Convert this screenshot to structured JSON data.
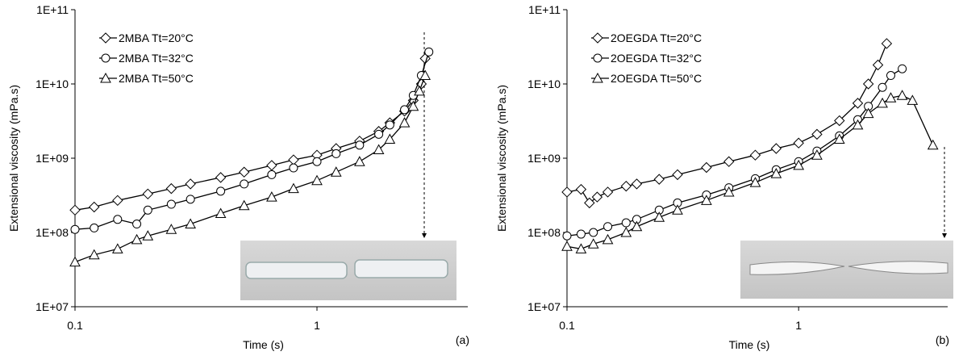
{
  "chart_data": [
    {
      "type": "line",
      "panel_label": "(a)",
      "xlabel": "Time (s)",
      "ylabel": "Extensional viscosity (mPa.s)",
      "log_x": true,
      "log_y": true,
      "legend": "upper left",
      "xlim": [
        0.1,
        4.2
      ],
      "xticks": [
        0.1,
        1
      ],
      "ylim": [
        10000000.0,
        100000000000.0
      ],
      "yticks": [
        {
          "value": 10000000.0,
          "label": "1E+07"
        },
        {
          "value": 100000000.0,
          "label": "1E+08"
        },
        {
          "value": 1000000000.0,
          "label": "1E+09"
        },
        {
          "value": 10000000000.0,
          "label": "1E+10"
        },
        {
          "value": 100000000000.0,
          "label": "1E+11"
        }
      ],
      "series": [
        {
          "name": "2MBA Tt=20°C",
          "marker": "diamond",
          "color": "#000000",
          "x": [
            0.1,
            0.12,
            0.15,
            0.2,
            0.25,
            0.3,
            0.4,
            0.5,
            0.65,
            0.8,
            1,
            1.2,
            1.5,
            1.8,
            2,
            2.3,
            2.5,
            2.7,
            2.8
          ],
          "values": [
            200000000.0,
            220000000.0,
            270000000.0,
            330000000.0,
            390000000.0,
            450000000.0,
            550000000.0,
            650000000.0,
            800000000.0,
            950000000.0,
            1100000000.0,
            1350000000.0,
            1700000000.0,
            2300000000.0,
            3000000000.0,
            4300000000.0,
            6000000000.0,
            10000000000.0,
            22000000000.0
          ]
        },
        {
          "name": "2MBA Tt=32°C",
          "marker": "circle",
          "color": "#000000",
          "x": [
            0.1,
            0.12,
            0.15,
            0.18,
            0.2,
            0.25,
            0.3,
            0.4,
            0.5,
            0.65,
            0.8,
            1,
            1.2,
            1.5,
            1.8,
            2,
            2.3,
            2.5,
            2.7,
            2.9
          ],
          "values": [
            110000000.0,
            115000000.0,
            150000000.0,
            130000000.0,
            200000000.0,
            240000000.0,
            280000000.0,
            360000000.0,
            450000000.0,
            600000000.0,
            740000000.0,
            900000000.0,
            1150000000.0,
            1500000000.0,
            2100000000.0,
            2800000000.0,
            4500000000.0,
            7000000000.0,
            13000000000.0,
            27000000000.0
          ]
        },
        {
          "name": "2MBA Tt=50°C",
          "marker": "triangle",
          "color": "#000000",
          "x": [
            0.1,
            0.12,
            0.15,
            0.18,
            0.2,
            0.25,
            0.3,
            0.4,
            0.5,
            0.65,
            0.8,
            1,
            1.2,
            1.5,
            1.8,
            2,
            2.3,
            2.5,
            2.65,
            2.8
          ],
          "values": [
            40000000.0,
            50000000.0,
            60000000.0,
            80000000.0,
            90000000.0,
            110000000.0,
            130000000.0,
            180000000.0,
            230000000.0,
            300000000.0,
            390000000.0,
            500000000.0,
            650000000.0,
            900000000.0,
            1300000000.0,
            1800000000.0,
            3000000000.0,
            5000000000.0,
            8000000000.0,
            13000000000.0
          ]
        }
      ]
    },
    {
      "type": "line",
      "panel_label": "(b)",
      "xlabel": "Time (s)",
      "ylabel": "Extensional viscosity  (mPa.s)",
      "log_x": true,
      "log_y": true,
      "legend": "upper left",
      "xlim": [
        0.1,
        4.4
      ],
      "xticks": [
        0.1,
        1
      ],
      "ylim": [
        10000000.0,
        100000000000.0
      ],
      "yticks": [
        {
          "value": 10000000.0,
          "label": "1E+07"
        },
        {
          "value": 100000000.0,
          "label": "1E+08"
        },
        {
          "value": 1000000000.0,
          "label": "1E+09"
        },
        {
          "value": 10000000000.0,
          "label": "1E+10"
        },
        {
          "value": 100000000000.0,
          "label": "1E+11"
        }
      ],
      "series": [
        {
          "name": "2OEGDA Tt=20°C",
          "marker": "diamond",
          "color": "#000000",
          "x": [
            0.1,
            0.115,
            0.125,
            0.135,
            0.15,
            0.18,
            0.2,
            0.25,
            0.3,
            0.4,
            0.5,
            0.65,
            0.8,
            1,
            1.2,
            1.5,
            1.8,
            2,
            2.2,
            2.4
          ],
          "values": [
            350000000.0,
            380000000.0,
            250000000.0,
            300000000.0,
            350000000.0,
            420000000.0,
            450000000.0,
            520000000.0,
            600000000.0,
            750000000.0,
            900000000.0,
            1100000000.0,
            1350000000.0,
            1600000000.0,
            2100000000.0,
            3200000000.0,
            5500000000.0,
            10000000000.0,
            18000000000.0,
            35000000000.0
          ]
        },
        {
          "name": "2OEGDA Tt=32°C",
          "marker": "circle",
          "color": "#000000",
          "x": [
            0.1,
            0.115,
            0.13,
            0.15,
            0.18,
            0.2,
            0.25,
            0.3,
            0.4,
            0.5,
            0.65,
            0.8,
            1,
            1.2,
            1.5,
            1.8,
            2,
            2.3,
            2.5,
            2.8
          ],
          "values": [
            90000000.0,
            95000000.0,
            100000000.0,
            120000000.0,
            135000000.0,
            150000000.0,
            200000000.0,
            250000000.0,
            320000000.0,
            400000000.0,
            530000000.0,
            700000000.0,
            900000000.0,
            1250000000.0,
            2000000000.0,
            3300000000.0,
            5000000000.0,
            9000000000.0,
            13000000000.0,
            16000000000.0
          ]
        },
        {
          "name": "2OEGDA Tt=50°C",
          "marker": "triangle",
          "color": "#000000",
          "x": [
            0.1,
            0.115,
            0.13,
            0.15,
            0.18,
            0.2,
            0.25,
            0.3,
            0.4,
            0.5,
            0.65,
            0.8,
            1,
            1.2,
            1.5,
            1.8,
            2,
            2.3,
            2.5,
            2.8,
            3.1,
            3.8
          ],
          "values": [
            65000000.0,
            60000000.0,
            70000000.0,
            80000000.0,
            100000000.0,
            120000000.0,
            160000000.0,
            200000000.0,
            270000000.0,
            350000000.0,
            470000000.0,
            620000000.0,
            800000000.0,
            1100000000.0,
            1800000000.0,
            2800000000.0,
            4000000000.0,
            5500000000.0,
            6500000000.0,
            7000000000.0,
            6000000000.0,
            1500000000.0
          ]
        }
      ]
    }
  ]
}
